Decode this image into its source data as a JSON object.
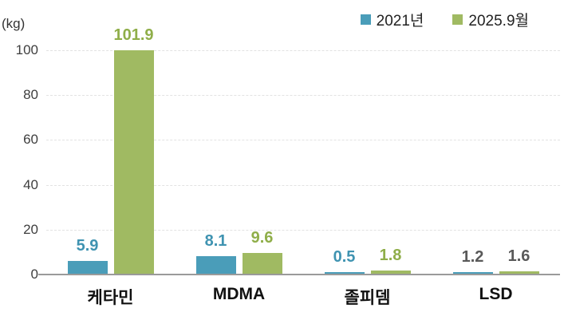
{
  "chart_data": {
    "type": "bar",
    "title": "",
    "unit_label": "(kg)",
    "categories": [
      "케타민",
      "MDMA",
      "졸피뎀",
      "LSD"
    ],
    "series": [
      {
        "name": "2021년",
        "color": "#4a9db9",
        "values": [
          5.9,
          8.1,
          0.5,
          1.2
        ],
        "value_label_colors": [
          "#3f93b1",
          "#3f93b1",
          "#3f93b1",
          "#595959"
        ]
      },
      {
        "name": "2025.9월",
        "color": "#a0ba62",
        "values": [
          101.9,
          9.6,
          1.8,
          1.6
        ],
        "value_label_colors": [
          "#8fae49",
          "#8fae49",
          "#8fae49",
          "#595959"
        ]
      }
    ],
    "ylim": [
      0,
      100
    ],
    "yticks": [
      0,
      20,
      40,
      60,
      80,
      100
    ],
    "grid": "dashed horizontal gridlines, clipped bars at ymax",
    "legend_position": "top-right",
    "colors": {
      "axis_line": "#9a9a9a",
      "gridline": "#e2e2e2",
      "tick_text": "#3e3e3e",
      "category_text": "#111111"
    }
  }
}
